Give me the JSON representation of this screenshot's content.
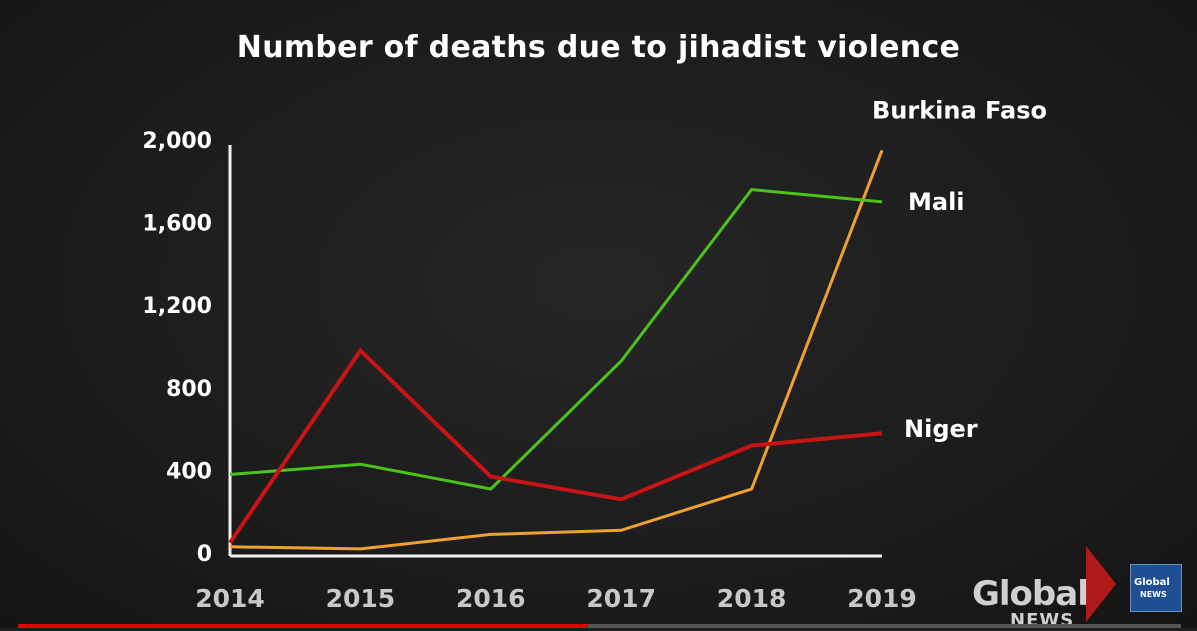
{
  "chart_data": {
    "type": "line",
    "title": "Number of deaths due to jihadist violence",
    "xlabel": "",
    "ylabel": "",
    "x": [
      "2014",
      "2015",
      "2016",
      "2017",
      "2018",
      "2019"
    ],
    "ylim": [
      0,
      2000
    ],
    "yticks": [
      "0",
      "400",
      "800",
      "1,200",
      "1,600",
      "2,000"
    ],
    "grid": false,
    "series": [
      {
        "name": "Burkina Faso",
        "color": "#f0a030",
        "values": [
          30,
          20,
          90,
          110,
          310,
          1950
        ]
      },
      {
        "name": "Mali",
        "color": "#4cc21a",
        "values": [
          380,
          430,
          310,
          930,
          1760,
          1700
        ]
      },
      {
        "name": "Niger",
        "color": "#c81414",
        "values": [
          50,
          980,
          370,
          260,
          520,
          580
        ]
      }
    ]
  },
  "logo": {
    "brand": "Global",
    "sub": "NEWS",
    "badge": "Global",
    "badge_sub": "NEWS"
  },
  "player": {
    "progress_fraction": 0.49
  }
}
